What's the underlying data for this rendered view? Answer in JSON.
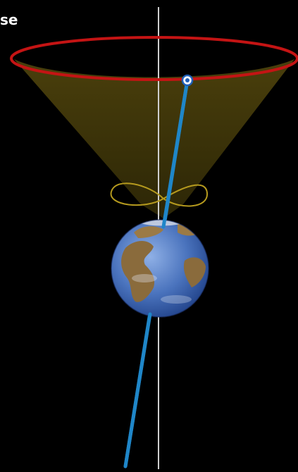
{
  "label": "se",
  "colors": {
    "background": "#000000",
    "precession_circle": "#c41414",
    "cone_fill": "#3a3208",
    "nutation_loop": "#b59a1e",
    "vertical_axis": "#cfcfcf",
    "rotation_axis": "#1f86c8",
    "axis_marker_fill": "#ffffff",
    "axis_marker_ring": "#1f5fb8",
    "earth_ocean": "#3f6bb5",
    "earth_land": "#8a6b3c"
  },
  "icons": [
    "earth-globe-icon"
  ]
}
